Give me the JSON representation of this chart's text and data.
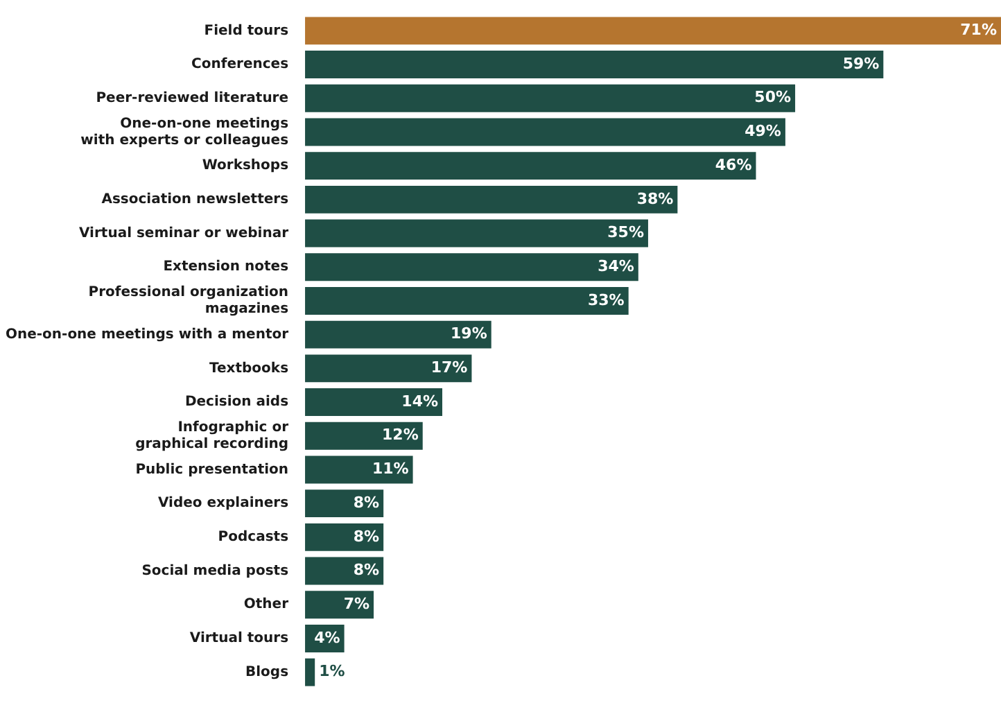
{
  "chart_data": {
    "type": "bar",
    "orientation": "horizontal",
    "categories": [
      "Field tours",
      "Conferences",
      "Peer-reviewed literature",
      "One-on-one meetings\nwith experts or colleagues",
      "Workshops",
      "Association newsletters",
      "Virtual seminar or webinar",
      "Extension notes",
      "Professional organization\nmagazines",
      "One-on-one meetings with a mentor",
      "Textbooks",
      "Decision aids",
      "Infographic or\ngraphical recording",
      "Public presentation",
      "Video explainers",
      "Podcasts",
      "Social media posts",
      "Other",
      "Virtual tours",
      "Blogs"
    ],
    "values": [
      71,
      59,
      50,
      49,
      46,
      38,
      35,
      34,
      33,
      19,
      17,
      14,
      12,
      11,
      8,
      8,
      8,
      7,
      4,
      1
    ],
    "value_labels": [
      "71%",
      "59%",
      "50%",
      "49%",
      "46%",
      "38%",
      "35%",
      "34%",
      "33%",
      "19%",
      "17%",
      "14%",
      "12%",
      "11%",
      "8%",
      "8%",
      "8%",
      "7%",
      "4%",
      "1%"
    ],
    "colors": [
      "#b5752f",
      "#1f4e45",
      "#1f4e45",
      "#1f4e45",
      "#1f4e45",
      "#1f4e45",
      "#1f4e45",
      "#1f4e45",
      "#1f4e45",
      "#1f4e45",
      "#1f4e45",
      "#1f4e45",
      "#1f4e45",
      "#1f4e45",
      "#1f4e45",
      "#1f4e45",
      "#1f4e45",
      "#1f4e45",
      "#1f4e45",
      "#1f4e45"
    ],
    "grid": false,
    "legend": false,
    "tick_labels": "y"
  }
}
